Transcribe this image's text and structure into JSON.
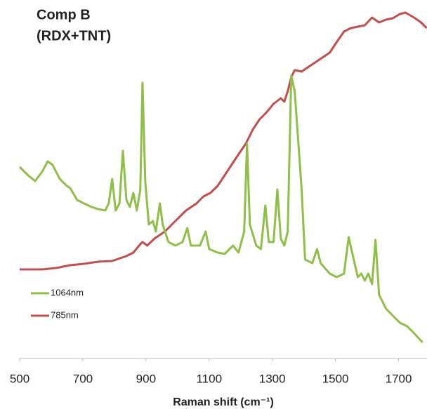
{
  "chart_data": {
    "type": "line",
    "title": "Comp B",
    "subtitle": "(RDX+TNT)",
    "x_label": "Raman shift (cm⁻¹)",
    "xlim": [
      500,
      1790
    ],
    "xticks": [
      500,
      700,
      900,
      1100,
      1300,
      1500,
      1700
    ],
    "ylim": [
      0,
      100
    ],
    "series": [
      {
        "name": "1064nm",
        "color": "#8fbf4a",
        "x": [
          500,
          527,
          549,
          571,
          589,
          604,
          627,
          649,
          660,
          682,
          704,
          727,
          749,
          771,
          782,
          793,
          804,
          816,
          827,
          838,
          849,
          860,
          871,
          882,
          889,
          898,
          909,
          922,
          931,
          944,
          953,
          971,
          993,
          1016,
          1031,
          1042,
          1071,
          1089,
          1100,
          1127,
          1149,
          1176,
          1193,
          1211,
          1220,
          1229,
          1249,
          1264,
          1278,
          1289,
          1304,
          1316,
          1327,
          1338,
          1349,
          1360,
          1371,
          1382,
          1393,
          1404,
          1427,
          1442,
          1453,
          1482,
          1504,
          1527,
          1542,
          1553,
          1571,
          1582,
          1593,
          1604,
          1616,
          1627,
          1638,
          1660,
          1682,
          1704,
          1727,
          1749,
          1776
        ],
        "values": [
          54.4,
          52,
          50.4,
          53,
          56,
          55,
          51,
          49,
          48.4,
          45,
          44,
          43,
          42.4,
          42,
          44,
          51,
          42,
          44,
          59,
          45,
          43,
          47,
          42,
          48,
          78.4,
          50,
          38,
          39,
          36,
          44,
          38,
          33,
          32,
          33,
          37,
          32,
          32,
          36,
          31,
          30,
          29.6,
          32,
          30,
          36,
          61,
          38,
          32,
          31,
          43.4,
          33,
          33,
          48,
          34,
          32,
          36,
          80.4,
          76,
          62,
          48,
          28,
          27,
          31,
          27,
          24,
          23,
          24,
          34.4,
          30,
          23,
          24,
          22,
          24,
          21,
          33.6,
          18,
          14,
          12,
          10,
          9,
          7,
          4.4
        ]
      },
      {
        "name": "785nm",
        "color": "#c0504d",
        "x": [
          500,
          571,
          616,
          660,
          704,
          749,
          793,
          838,
          860,
          882,
          889,
          904,
          927,
          960,
          993,
          1027,
          1060,
          1082,
          1104,
          1127,
          1149,
          1171,
          1193,
          1216,
          1227,
          1238,
          1260,
          1282,
          1304,
          1327,
          1338,
          1349,
          1360,
          1371,
          1393,
          1416,
          1449,
          1482,
          1504,
          1527,
          1549,
          1571,
          1593,
          1616,
          1638,
          1660,
          1682,
          1704,
          1722,
          1749,
          1771,
          1789
        ],
        "values": [
          25.2,
          25.2,
          25.6,
          26.4,
          26.8,
          27.4,
          27.6,
          29,
          30,
          32.4,
          33,
          32,
          34,
          36,
          39,
          42,
          44,
          46,
          47,
          49,
          52,
          55,
          58,
          61,
          63,
          65,
          68,
          70,
          72.4,
          74,
          73,
          76,
          80,
          82,
          81.6,
          83,
          85,
          87,
          90,
          93,
          94,
          94.4,
          94.8,
          97,
          95.6,
          96.4,
          96.8,
          98,
          98.4,
          97,
          95.6,
          94
        ]
      }
    ]
  }
}
